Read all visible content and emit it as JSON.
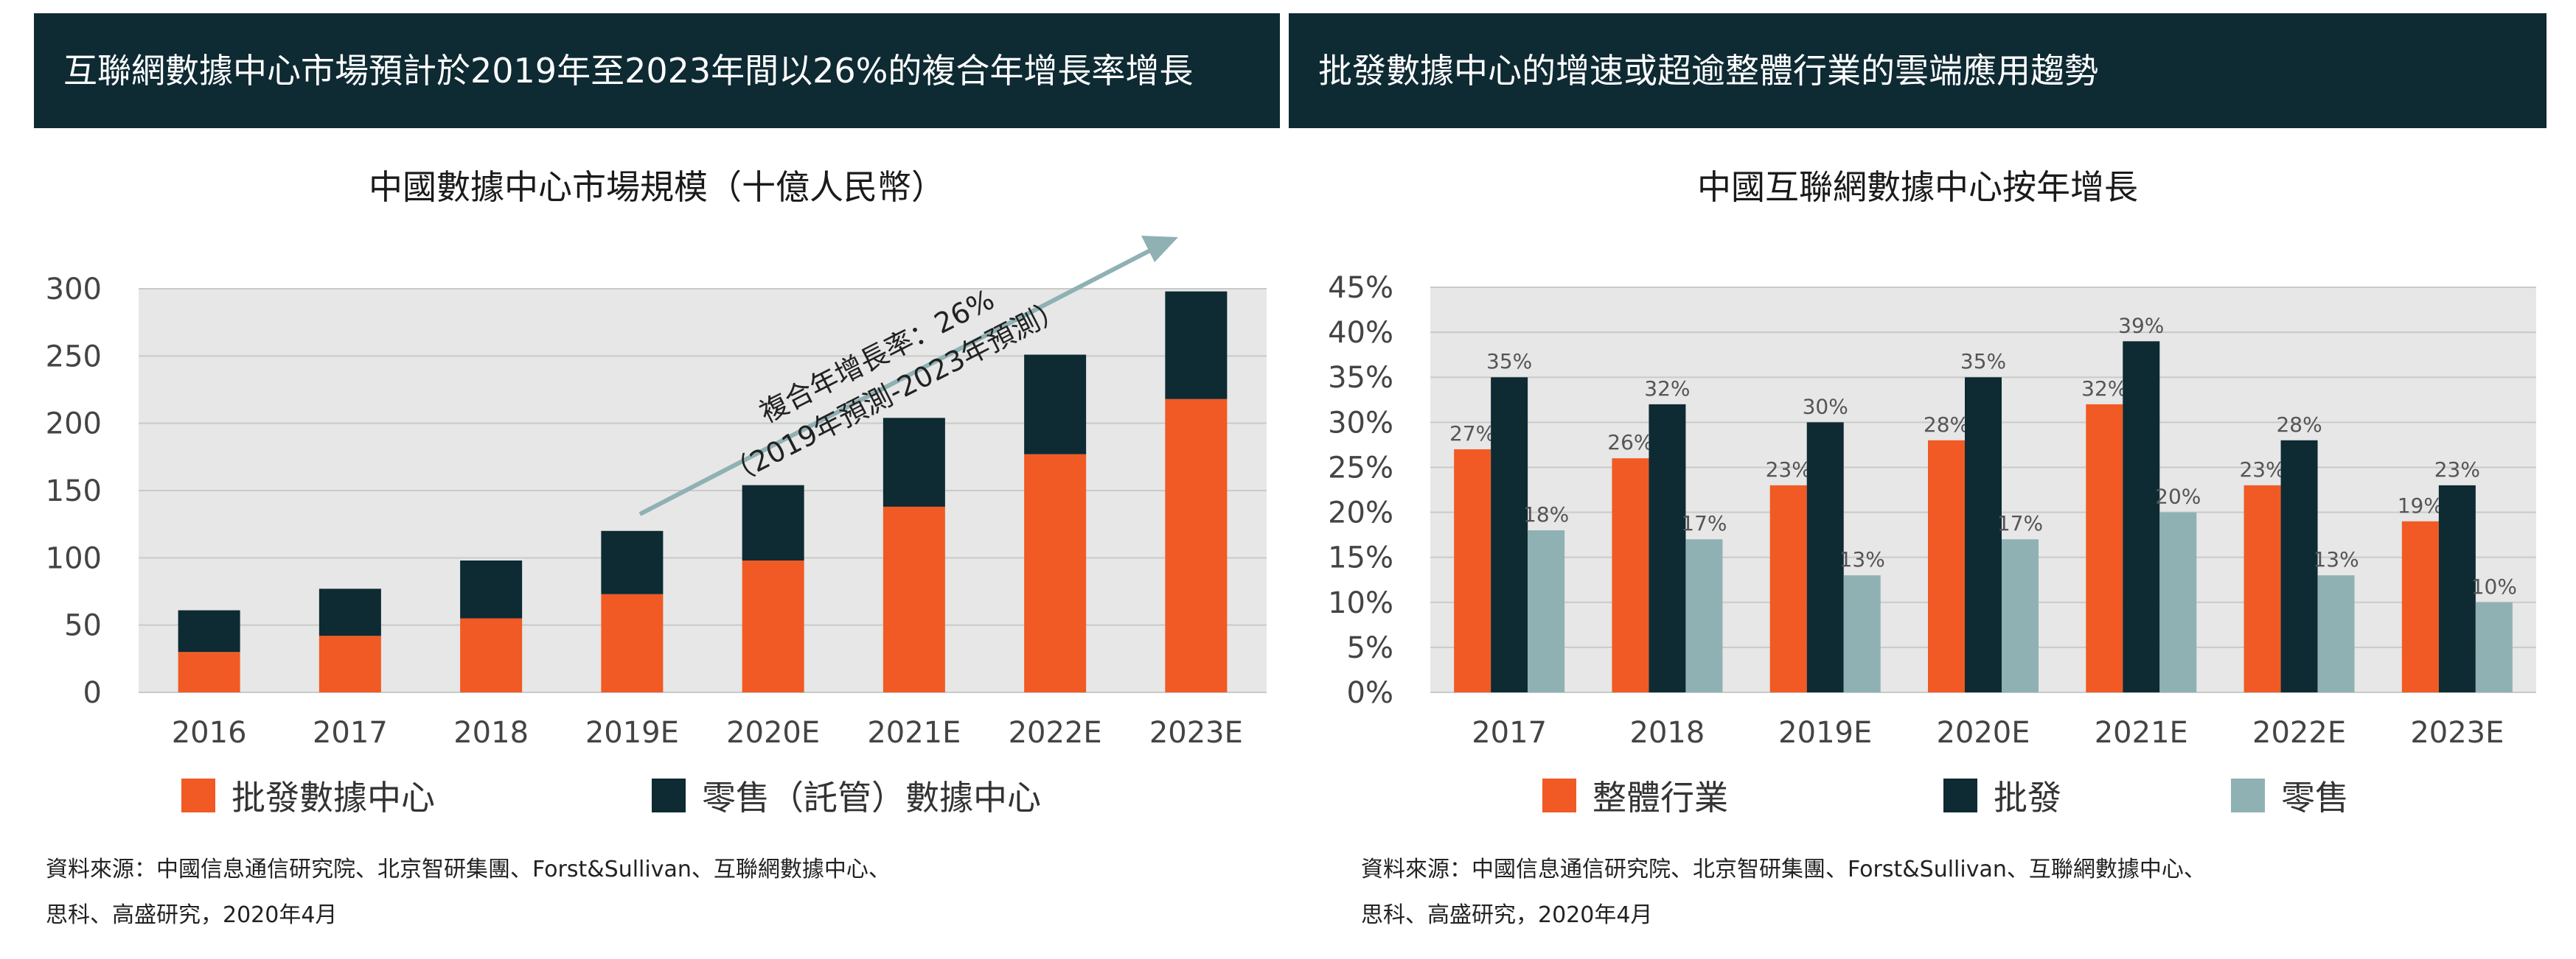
{
  "banners": {
    "left": "互聯網數據中心市場預計於2019年至2023年間以26%的複合年增長率增長",
    "right": "批發數據中心的增速或超逾整體行業的雲端應用趨勢"
  },
  "colors": {
    "orange": "#f15a24",
    "navy": "#0e2a33",
    "teal": "#8fb1b3",
    "plot_bg": "#e6e7e6",
    "arrow": "#8fb1b3"
  },
  "annotation": {
    "line1": "複合年增長率：26%",
    "line2": "（2019年預測-2023年預測）"
  },
  "sources": {
    "left_line1": "資料來源：中國信息通信研究院、北京智研集團、Forst&Sullivan、互聯網數據中心、",
    "left_line2": "思科、高盛研究，2020年4月",
    "right_line1": "資料來源：中國信息通信研究院、北京智研集團、Forst&Sullivan、互聯網數據中心、",
    "right_line2": "思科、高盛研究，2020年4月"
  },
  "chart_data": [
    {
      "type": "bar",
      "stacked": true,
      "title": "中國數據中心市場規模（十億人民幣）",
      "categories": [
        "2016",
        "2017",
        "2018",
        "2019E",
        "2020E",
        "2021E",
        "2022E",
        "2023E"
      ],
      "series": [
        {
          "name": "批發數據中心",
          "color": "#f15a24",
          "values": [
            30,
            42,
            55,
            73,
            98,
            138,
            177,
            218
          ]
        },
        {
          "name": "零售（託管）數據中心",
          "color": "#0e2a33",
          "values": [
            31,
            35,
            43,
            47,
            56,
            66,
            74,
            80
          ]
        }
      ],
      "yticks": [
        "0",
        "50",
        "100",
        "150",
        "200",
        "250",
        "300"
      ],
      "ylim": [
        0,
        300
      ],
      "grid": true,
      "legend": "bottom"
    },
    {
      "type": "bar",
      "title": "中國互聯網數據中心按年增長",
      "categories": [
        "2017",
        "2018",
        "2019E",
        "2020E",
        "2021E",
        "2022E",
        "2023E"
      ],
      "series": [
        {
          "name": "整體行業",
          "color": "#f15a24",
          "values": [
            27,
            26,
            23,
            28,
            32,
            23,
            19
          ],
          "labels": [
            "27%",
            "26%",
            "23%",
            "28%",
            "32%",
            "23%",
            "19%"
          ]
        },
        {
          "name": "批發",
          "color": "#0e2a33",
          "values": [
            35,
            32,
            30,
            35,
            39,
            28,
            23
          ],
          "labels": [
            "35%",
            "32%",
            "30%",
            "35%",
            "39%",
            "28%",
            "23%"
          ]
        },
        {
          "name": "零售",
          "color": "#8fb1b3",
          "values": [
            18,
            17,
            13,
            17,
            20,
            13,
            10
          ],
          "labels": [
            "18%",
            "17%",
            "13%",
            "17%",
            "20%",
            "13%",
            "10%"
          ]
        }
      ],
      "yticks": [
        "0%",
        "5%",
        "10%",
        "15%",
        "20%",
        "25%",
        "30%",
        "35%",
        "40%",
        "45%"
      ],
      "ylim": [
        0,
        45
      ],
      "grid": true,
      "legend": "bottom"
    }
  ]
}
